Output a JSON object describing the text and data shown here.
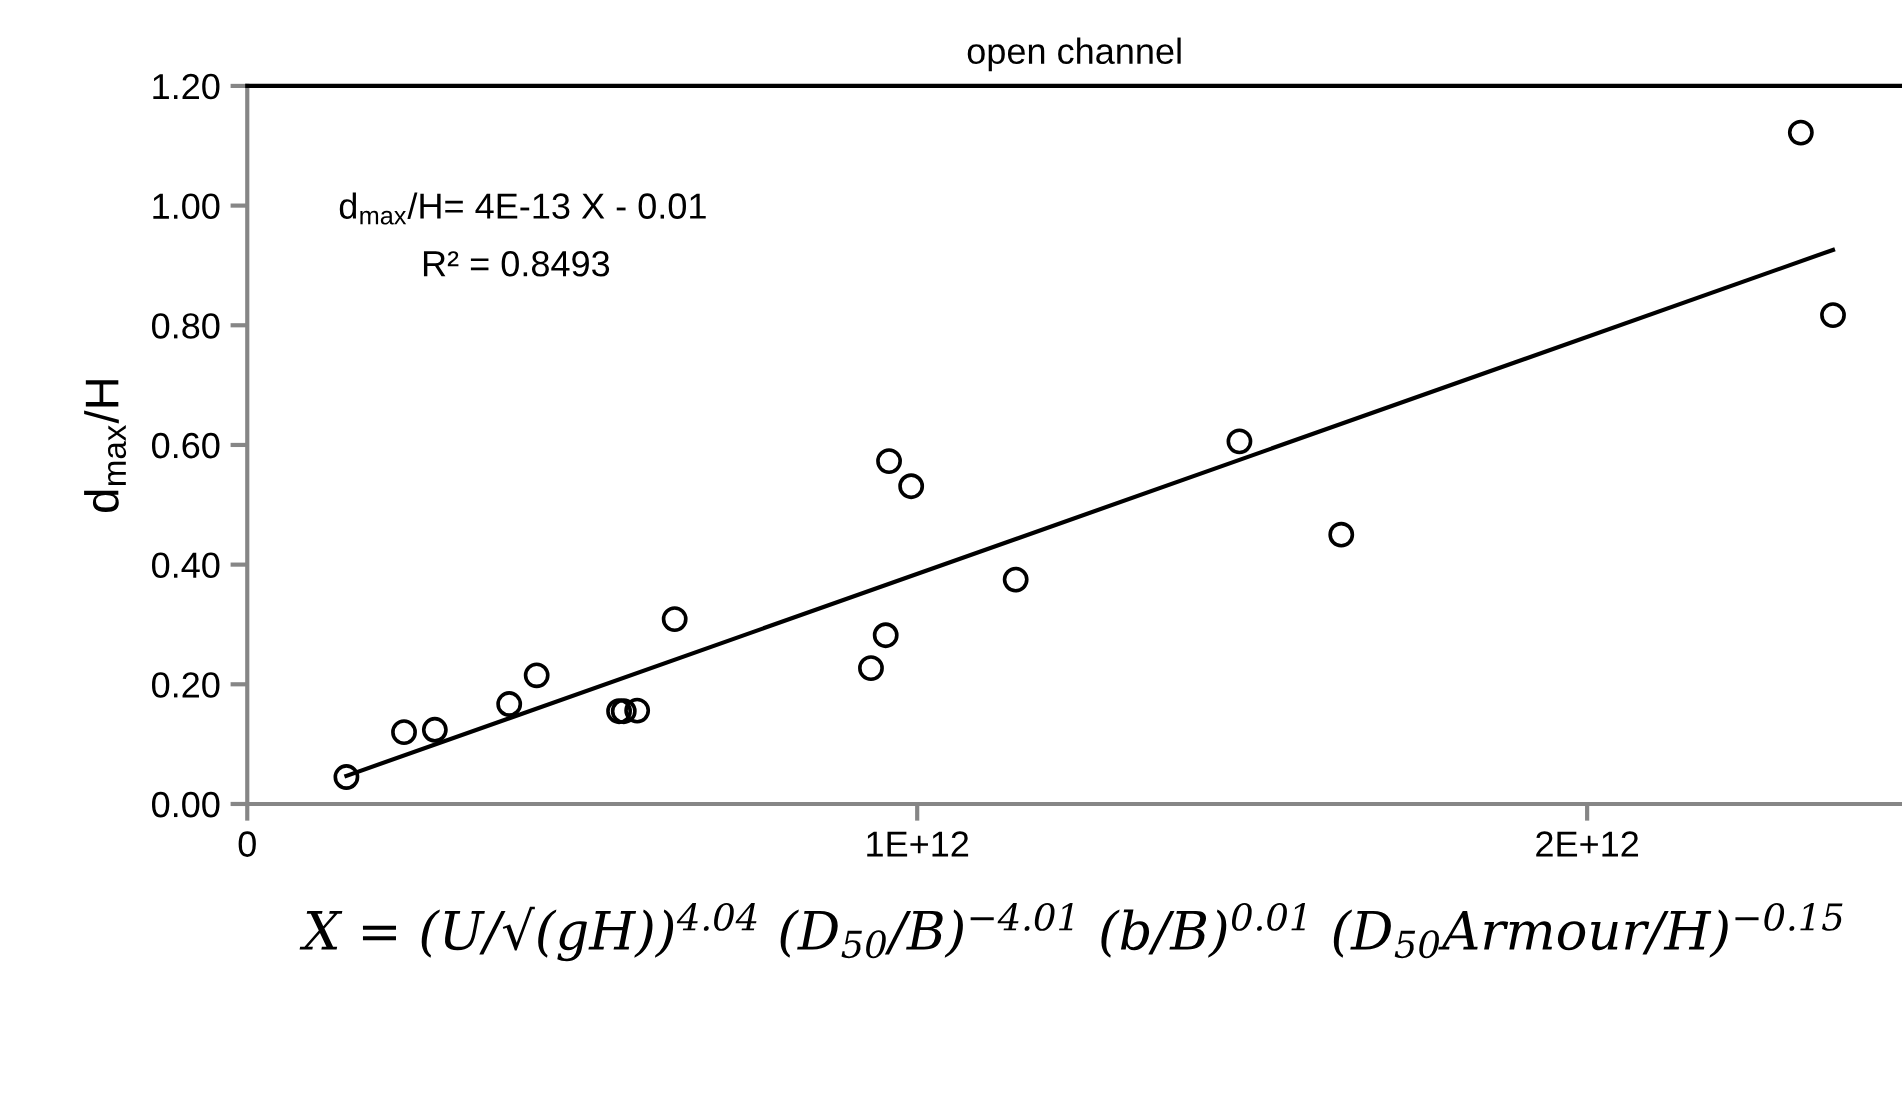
{
  "chart_data": {
    "type": "scatter",
    "title": "open channel",
    "xlabel": "X = (U/√(gH))$^{4.04}$ (D$_{50}$/B)$^{−4.01}$ (b/B)$^{0.01}$ (D$_{50}$Armour/H)$^{−0.15}$",
    "ylabel": "d$_{max}$/H",
    "annotations": [
      "d$_{max}$/H= 4E-13 X - 0.01",
      "R² = 0.8493"
    ],
    "series": [
      {
        "color": "#000000",
        "marker": "circle",
        "x": [
          148000000000.0,
          234000000000.0,
          280000000000.0,
          391000000000.0,
          432000000000.0,
          555000000000.0,
          562000000000.0,
          582000000000.0,
          638000000000.0,
          931000000000.0,
          953000000000.0,
          958000000000.0,
          991000000000.0,
          1147000000000.0,
          1481000000000.0,
          1633000000000.0,
          2319000000000.0,
          2367000000000.0
        ],
        "values": [
          0.045,
          0.12,
          0.124,
          0.167,
          0.215,
          0.155,
          0.155,
          0.156,
          0.309,
          0.227,
          0.282,
          0.573,
          0.531,
          0.375,
          0.606,
          0.45,
          1.122,
          0.817
        ]
      },
      {
        "type": "line",
        "color": "#000000",
        "marker": "none",
        "line_style": "solid",
        "x": [
          148000000000.0,
          2367000000000.0
        ],
        "values": [
          0.047,
          0.926
        ]
      }
    ],
    "xlim": [
      0,
      2470000000000.0
    ],
    "xticks": [
      0,
      {
        "value": 1000000000000.0,
        "label": "1E+12"
      },
      {
        "value": 2000000000000.0,
        "label": "2E+12"
      }
    ],
    "ylim": [
      0,
      1.2
    ],
    "yticks": [
      {
        "value": 0,
        "label": "0.00"
      },
      {
        "value": 0.2,
        "label": "0.20"
      },
      {
        "value": 0.4,
        "label": "0.40"
      },
      {
        "value": 0.6,
        "label": "0.60"
      },
      {
        "value": 0.8,
        "label": "0.80"
      },
      {
        "value": 1.0,
        "label": "1.00"
      },
      {
        "value": 1.2,
        "label": "1.20"
      }
    ],
    "grid": false,
    "legend": false
  }
}
